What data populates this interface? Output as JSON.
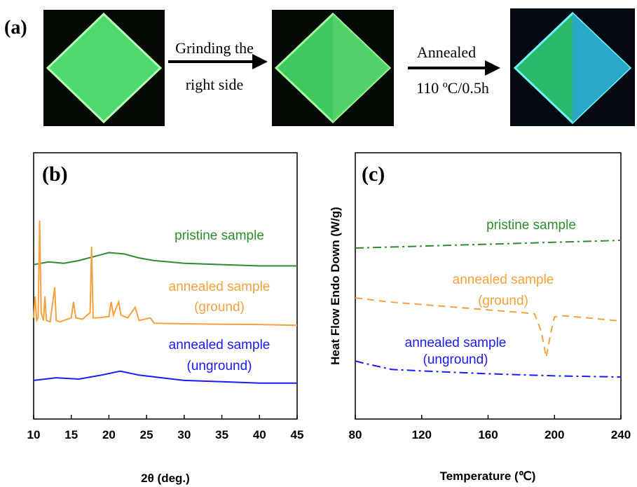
{
  "panel_a": {
    "label": "(a)",
    "arrow_labels": [
      [
        "Grinding the",
        "right side"
      ],
      [
        "Annealed",
        "110 ºC/0.5h"
      ]
    ]
  },
  "chart_data": [
    {
      "type": "line",
      "label": "(b)",
      "x_label": "2θ (deg.)",
      "xlim": [
        10,
        45
      ],
      "xticks": [
        10,
        15,
        20,
        25,
        30,
        35,
        40,
        45
      ],
      "ylim": [
        0,
        100
      ],
      "series": [
        {
          "name": "pristine sample",
          "color": "#2e8b2e",
          "style": "solid",
          "x": [
            10,
            12,
            14,
            16,
            18,
            20,
            22,
            24,
            26,
            28,
            30,
            35,
            40,
            45
          ],
          "values": [
            58,
            59,
            58.5,
            59.5,
            61,
            62.5,
            62,
            60.5,
            59.5,
            59,
            58.5,
            58,
            57.5,
            57.5
          ]
        },
        {
          "name": "annealed sample",
          "sublabel": "(ground)",
          "color": "#f7a040",
          "style": "solid",
          "x": [
            10,
            10.2,
            10.4,
            10.6,
            10.8,
            11,
            11.3,
            11.5,
            11.7,
            12.2,
            12.8,
            13,
            13.5,
            15,
            15.3,
            15.6,
            16.5,
            17.5,
            17.7,
            17.9,
            18.5,
            20,
            20.3,
            20.6,
            21,
            21.3,
            21.6,
            22.5,
            23.5,
            24,
            25.5,
            26,
            30,
            35,
            40,
            45
          ],
          "values": [
            38,
            46,
            37,
            38,
            74.5,
            40,
            37,
            46,
            37,
            36.5,
            49.5,
            37,
            36.5,
            38,
            44,
            38,
            37.5,
            40,
            64.7,
            38,
            38,
            38.5,
            44,
            39,
            42,
            44,
            39,
            38,
            42,
            37,
            38,
            36,
            35.8,
            35.6,
            35.5,
            35.2
          ]
        },
        {
          "name": "annealed sample",
          "sublabel": "(unground)",
          "color": "#1a1aff",
          "style": "solid",
          "x": [
            10,
            13,
            16,
            19,
            21.5,
            24,
            27,
            30,
            35,
            40,
            45
          ],
          "values": [
            14.5,
            15.5,
            15,
            16.5,
            18,
            16.5,
            15.5,
            14.5,
            14,
            13.5,
            13.5
          ]
        }
      ]
    },
    {
      "type": "line",
      "label": "(c)",
      "x_label": "Temperature (℃)",
      "y_label": "Heat Flow Endo Down (W/g)",
      "xlim": [
        80,
        240
      ],
      "xticks": [
        80,
        120,
        160,
        200,
        240
      ],
      "ylim": [
        0,
        100
      ],
      "series": [
        {
          "name": "pristine sample",
          "color": "#2e8b2e",
          "style": "dashdot",
          "x": [
            80,
            240
          ],
          "values": [
            64.2,
            67.1
          ]
        },
        {
          "name": "annealed sample",
          "sublabel": "(ground)",
          "color": "#f7a040",
          "style": "dashed",
          "x": [
            80,
            100,
            120,
            140,
            160,
            180,
            188,
            192,
            195,
            198,
            200,
            205,
            220,
            240
          ],
          "values": [
            45.5,
            44,
            43,
            42,
            41,
            40,
            39.5,
            33,
            23.2,
            33,
            38.4,
            38.8,
            38,
            36.8
          ]
        },
        {
          "name": "annealed sample",
          "sublabel": "(unground)",
          "color": "#1a1aff",
          "style": "dashdot",
          "x": [
            80,
            85,
            102,
            130,
            160,
            200,
            240
          ],
          "values": [
            21.8,
            21,
            18.6,
            17.8,
            17,
            16.2,
            15.8
          ]
        }
      ]
    }
  ]
}
